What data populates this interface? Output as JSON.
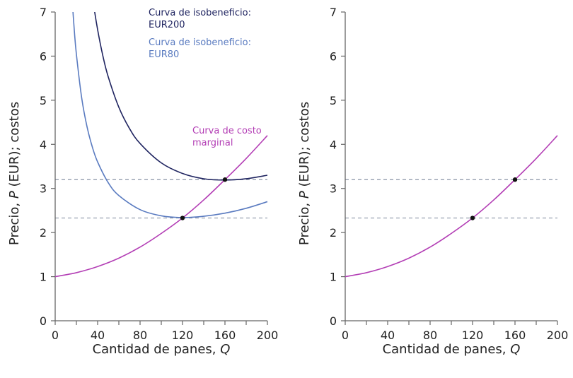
{
  "colors": {
    "isoprofit_200": "#1f2460",
    "isoprofit_80": "#5a7bc0",
    "marginal_cost": "#b33eb5",
    "dashed": "#8a94a6",
    "axis": "#666666",
    "point": "#111111"
  },
  "chart_data": [
    {
      "type": "line",
      "xlabel": "Cantidad de panes, Q",
      "ylabel": "Precio, P (EUR); costos",
      "xlim": [
        0,
        200
      ],
      "ylim": [
        0,
        7
      ],
      "xticks": [
        0,
        40,
        80,
        120,
        160,
        200
      ],
      "xminor_step": 20,
      "yticks": [
        0,
        1,
        2,
        3,
        4,
        5,
        6,
        7
      ],
      "grid": false,
      "hlines": [
        2.33,
        3.2
      ],
      "points": [
        {
          "x": 120,
          "y": 2.33
        },
        {
          "x": 160,
          "y": 3.2
        }
      ],
      "series": [
        {
          "key": "isoprofit_200",
          "name": "Curva de isobeneficio: EUR200",
          "label_lines": [
            "Curva de isobeneficio:",
            "EUR200"
          ],
          "x": [
            32,
            36,
            40,
            45,
            50,
            60,
            70,
            80,
            100,
            120,
            140,
            160,
            180,
            200
          ],
          "y": [
            7.95,
            7.2,
            6.6,
            6.0,
            5.53,
            4.84,
            4.36,
            4.02,
            3.58,
            3.34,
            3.22,
            3.19,
            3.22,
            3.3
          ]
        },
        {
          "key": "isoprofit_80",
          "name": "Curva de isobeneficio: EUR80",
          "label_lines": [
            "Curva de isobeneficio:",
            "EUR80"
          ],
          "x": [
            15,
            16,
            18,
            20,
            25,
            30,
            35,
            40,
            50,
            60,
            80,
            100,
            120,
            140,
            160,
            180,
            200
          ],
          "y": [
            7.7,
            7.28,
            6.59,
            6.04,
            5.05,
            4.4,
            3.94,
            3.6,
            3.13,
            2.84,
            2.52,
            2.38,
            2.34,
            2.37,
            2.44,
            2.55,
            2.7
          ]
        },
        {
          "key": "marginal_cost",
          "name": "Curva de costo marginal",
          "label_lines": [
            "Curva de costo",
            "marginal"
          ],
          "x": [
            0,
            20,
            40,
            60,
            80,
            100,
            120,
            140,
            160,
            180,
            200
          ],
          "y": [
            1.0,
            1.09,
            1.23,
            1.42,
            1.67,
            1.98,
            2.33,
            2.74,
            3.2,
            3.68,
            4.2
          ]
        }
      ]
    },
    {
      "type": "line",
      "xlabel": "Cantidad de panes, Q",
      "ylabel": "Precio, P (EUR); costos",
      "xlim": [
        0,
        200
      ],
      "ylim": [
        0,
        7
      ],
      "xticks": [
        0,
        40,
        80,
        120,
        160,
        200
      ],
      "xminor_step": 20,
      "yticks": [
        0,
        1,
        2,
        3,
        4,
        5,
        6,
        7
      ],
      "grid": false,
      "hlines": [
        2.33,
        3.2
      ],
      "points": [
        {
          "x": 120,
          "y": 2.33
        },
        {
          "x": 160,
          "y": 3.2
        }
      ],
      "series": [
        {
          "key": "marginal_cost",
          "x": [
            0,
            20,
            40,
            60,
            80,
            100,
            120,
            140,
            160,
            180,
            200
          ],
          "y": [
            1.0,
            1.09,
            1.23,
            1.42,
            1.67,
            1.98,
            2.33,
            2.74,
            3.2,
            3.68,
            4.2
          ]
        }
      ]
    }
  ]
}
